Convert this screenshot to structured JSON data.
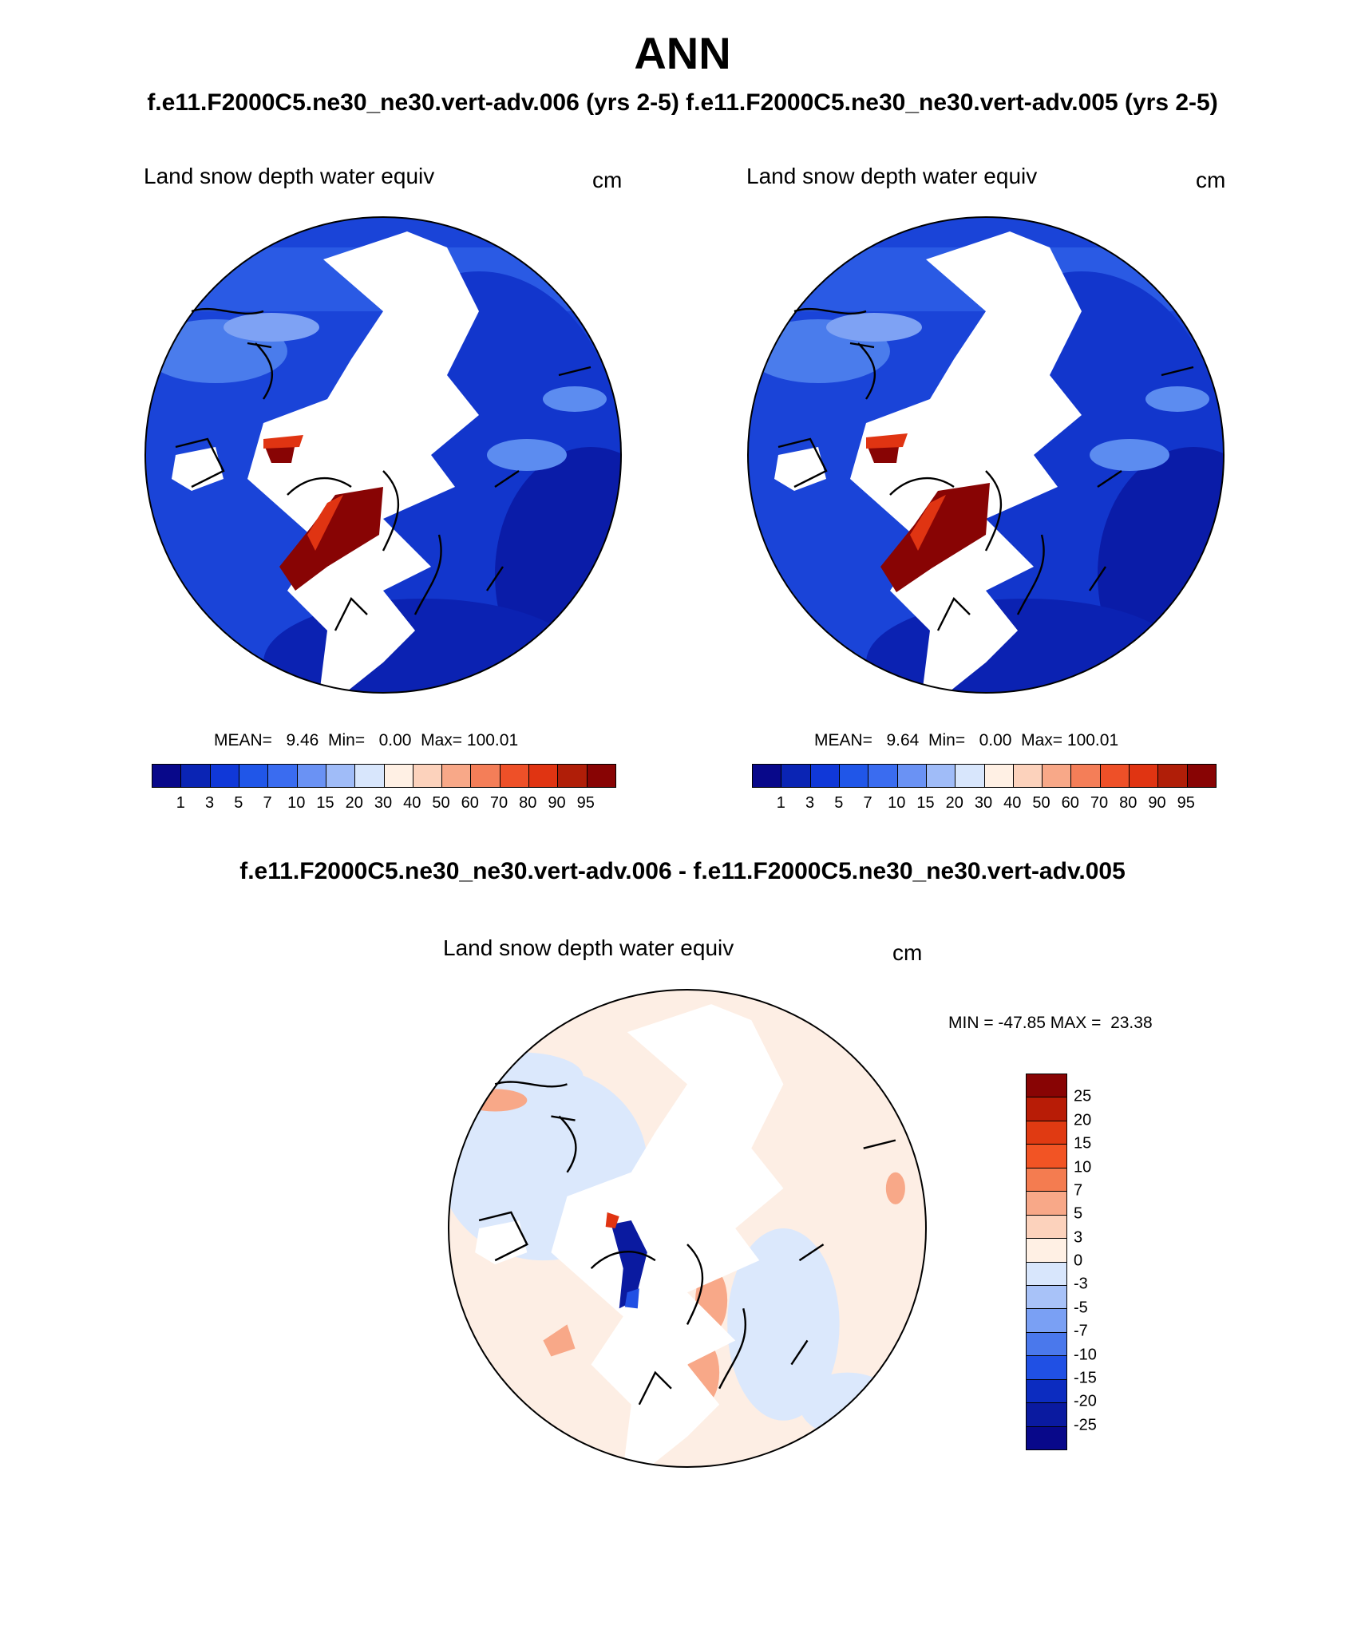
{
  "title": "ANN",
  "header": "f.e11.F2000C5.ne30_ne30.vert-adv.006 (yrs 2-5)  f.e11.F2000C5.ne30_ne30.vert-adv.005 (yrs 2-5)",
  "panels": [
    {
      "variable": "Land snow depth water equiv",
      "units": "cm",
      "stats": "MEAN=   9.46  Min=   0.00  Max= 100.01",
      "colorbar_labels": [
        "1",
        "3",
        "5",
        "7",
        "10",
        "15",
        "20",
        "30",
        "40",
        "50",
        "60",
        "70",
        "80",
        "90",
        "95"
      ]
    },
    {
      "variable": "Land snow depth water equiv",
      "units": "cm",
      "stats": "MEAN=   9.64  Min=   0.00  Max= 100.01",
      "colorbar_labels": [
        "1",
        "3",
        "5",
        "7",
        "10",
        "15",
        "20",
        "30",
        "40",
        "50",
        "60",
        "70",
        "80",
        "90",
        "95"
      ]
    }
  ],
  "difference": {
    "title": "f.e11.F2000C5.ne30_ne30.vert-adv.006 - f.e11.F2000C5.ne30_ne30.vert-adv.005",
    "variable": "Land snow depth water equiv",
    "units": "cm",
    "stats": "MIN = -47.85 MAX =  23.38",
    "colorbar_labels": [
      "25",
      "20",
      "15",
      "10",
      "7",
      "5",
      "3",
      "0",
      "-3",
      "-5",
      "-7",
      "-10",
      "-15",
      "-20",
      "-25"
    ]
  },
  "colors": {
    "abs_scale": [
      "#08088a",
      "#0a24b4",
      "#1038d8",
      "#2056e8",
      "#3a6cf0",
      "#6a92f4",
      "#a0bcf8",
      "#d8e6fc",
      "#fff0e4",
      "#fcd2bc",
      "#f8a888",
      "#f47e58",
      "#ee5028",
      "#e03412",
      "#b01e08",
      "#880404"
    ],
    "diff_scale": [
      "#880404",
      "#b81c06",
      "#e03a12",
      "#f25424",
      "#f47c50",
      "#f8a888",
      "#fcd2bc",
      "#fff0e4",
      "#d8e6fc",
      "#a8c2f8",
      "#7aa0f4",
      "#4a78ec",
      "#2050e4",
      "#0c2cc0",
      "#0a1aa0",
      "#08088a"
    ]
  }
}
